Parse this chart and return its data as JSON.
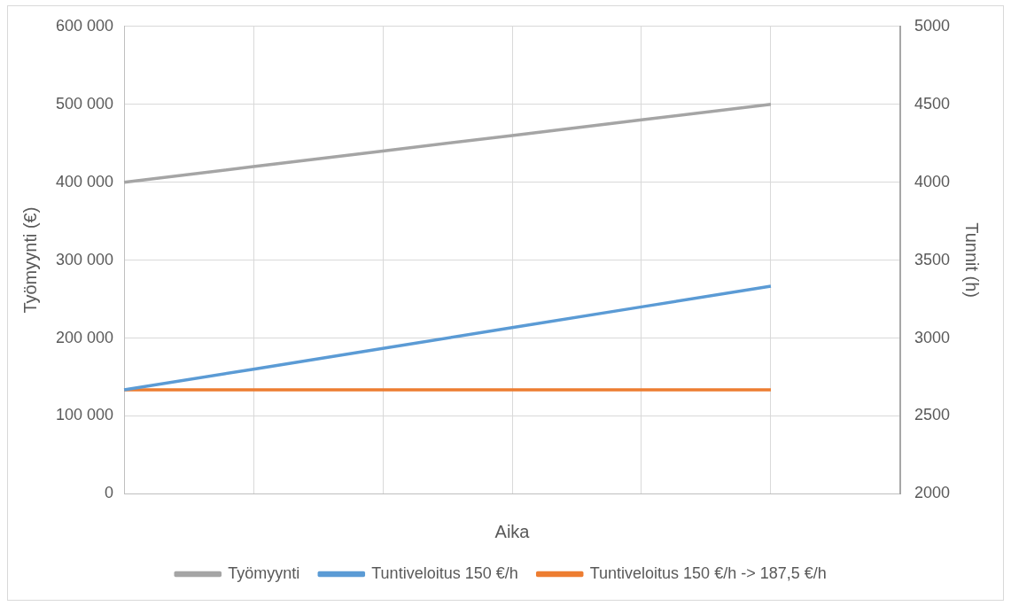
{
  "chart_data": {
    "type": "line",
    "xlabel": "Aika",
    "ylabel": "Työmyynti (€)",
    "y2label": "Tunnit (h)",
    "categories": [
      null,
      null,
      null,
      null,
      null,
      null,
      null
    ],
    "series": [
      {
        "name": "Työmyynti",
        "color": "#a5a5a5",
        "values": [
          400000,
          420000,
          440000,
          460000,
          480000,
          500000,
          null
        ]
      },
      {
        "name": "Tuntiveloitus 150 €/h",
        "color": "#5b9bd5",
        "axis": "y2",
        "values": [
          2667,
          2800,
          2933,
          3067,
          3200,
          3333,
          null
        ]
      },
      {
        "name": "Tuntiveloitus 150 €/h -> 187,5 €/h",
        "color": "#ed7d31",
        "axis": "y2",
        "values": [
          2667,
          2667,
          2667,
          2667,
          2667,
          2667,
          null
        ]
      }
    ],
    "ylim": [
      0,
      600000
    ],
    "yticks": [
      {
        "value": 0,
        "label": "0"
      },
      {
        "value": 100000,
        "label": "100 000"
      },
      {
        "value": 200000,
        "label": "200 000"
      },
      {
        "value": 300000,
        "label": "300 000"
      },
      {
        "value": 400000,
        "label": "400 000"
      },
      {
        "value": 500000,
        "label": "500 000"
      },
      {
        "value": 600000,
        "label": "600 000"
      }
    ],
    "y2lim": [
      2000,
      5000
    ],
    "y2ticks": [
      2000,
      2500,
      3000,
      3500,
      4000,
      4500,
      5000
    ],
    "grid": true,
    "legend": "bottom"
  }
}
